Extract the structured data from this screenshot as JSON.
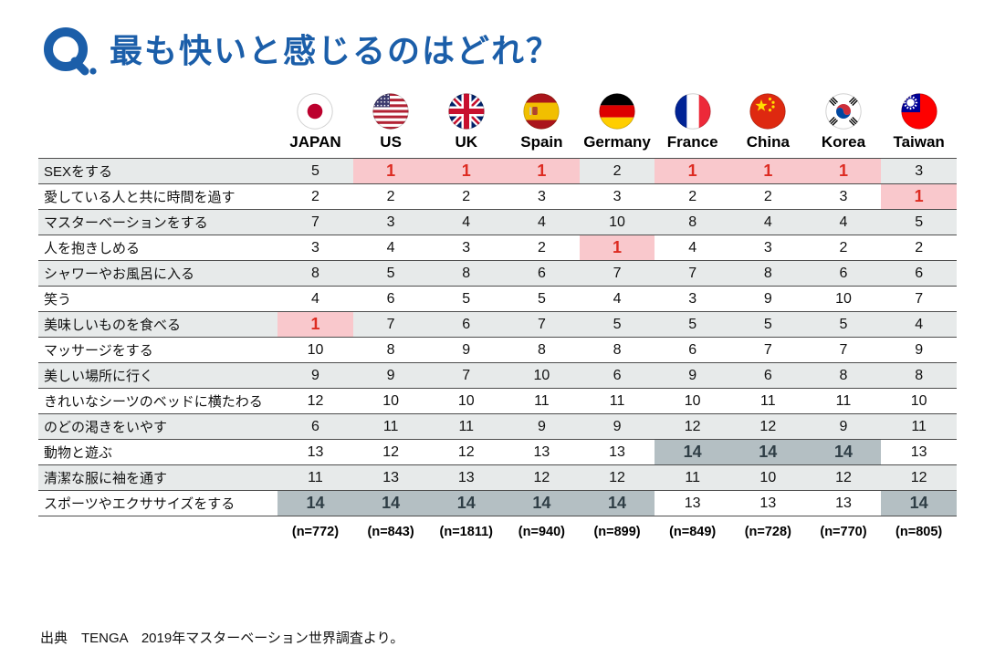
{
  "title": {
    "text": "最も快いと感じるのはどれ？"
  },
  "chart_data": {
    "type": "table",
    "title": "最も快いと感じるのはどれ？",
    "columns": [
      {
        "label": "JAPAN",
        "flag": "japan",
        "sample": "(n=772)"
      },
      {
        "label": "US",
        "flag": "us",
        "sample": "(n=843)"
      },
      {
        "label": "UK",
        "flag": "uk",
        "sample": "(n=1811)"
      },
      {
        "label": "Spain",
        "flag": "spain",
        "sample": "(n=940)"
      },
      {
        "label": "Germany",
        "flag": "germany",
        "sample": "(n=899)"
      },
      {
        "label": "France",
        "flag": "france",
        "sample": "(n=849)"
      },
      {
        "label": "China",
        "flag": "china",
        "sample": "(n=728)"
      },
      {
        "label": "Korea",
        "flag": "korea",
        "sample": "(n=770)"
      },
      {
        "label": "Taiwan",
        "flag": "taiwan",
        "sample": "(n=805)"
      }
    ],
    "rows": [
      {
        "label": "SEXをする",
        "values": [
          5,
          1,
          1,
          1,
          2,
          1,
          1,
          1,
          3
        ]
      },
      {
        "label": "愛している人と共に時間を過す",
        "values": [
          2,
          2,
          2,
          3,
          3,
          2,
          2,
          3,
          1
        ]
      },
      {
        "label": "マスターベーションをする",
        "values": [
          7,
          3,
          4,
          4,
          10,
          8,
          4,
          4,
          5
        ]
      },
      {
        "label": "人を抱きしめる",
        "values": [
          3,
          4,
          3,
          2,
          1,
          4,
          3,
          2,
          2
        ]
      },
      {
        "label": "シャワーやお風呂に入る",
        "values": [
          8,
          5,
          8,
          6,
          7,
          7,
          8,
          6,
          6
        ]
      },
      {
        "label": "笑う",
        "values": [
          4,
          6,
          5,
          5,
          4,
          3,
          9,
          10,
          7
        ]
      },
      {
        "label": "美味しいものを食べる",
        "values": [
          1,
          7,
          6,
          7,
          5,
          5,
          5,
          5,
          4
        ]
      },
      {
        "label": "マッサージをする",
        "values": [
          10,
          8,
          9,
          8,
          8,
          6,
          7,
          7,
          9
        ]
      },
      {
        "label": "美しい場所に行く",
        "values": [
          9,
          9,
          7,
          10,
          6,
          9,
          6,
          8,
          8
        ]
      },
      {
        "label": "きれいなシーツのベッドに横たわる",
        "values": [
          12,
          10,
          10,
          11,
          11,
          10,
          11,
          11,
          10
        ]
      },
      {
        "label": "のどの渇きをいやす",
        "values": [
          6,
          11,
          11,
          9,
          9,
          12,
          12,
          9,
          11
        ]
      },
      {
        "label": "動物と遊ぶ",
        "values": [
          13,
          12,
          12,
          13,
          13,
          14,
          14,
          14,
          13
        ]
      },
      {
        "label": "清潔な服に袖を通す",
        "values": [
          11,
          13,
          13,
          12,
          12,
          11,
          10,
          12,
          12
        ]
      },
      {
        "label": "スポーツやエクササイズをする",
        "values": [
          14,
          14,
          14,
          14,
          14,
          13,
          13,
          13,
          14
        ]
      }
    ],
    "highlights": {
      "top_rank": 1,
      "bottom_rank": 14
    },
    "legend_position": "none",
    "grid": "horizontal-lines"
  },
  "footer": "出典　TENGA　2019年マスターベーション世界調査より。",
  "colors": {
    "accent_blue": "#1b5ea9",
    "rank1_bg": "#f9c8cc",
    "rank1_text": "#dd2b21",
    "rank14_bg": "#b4bfc3",
    "rank14_text": "#2f3e46",
    "stripe": "#e7eaea",
    "line": "#4d4d4d"
  }
}
